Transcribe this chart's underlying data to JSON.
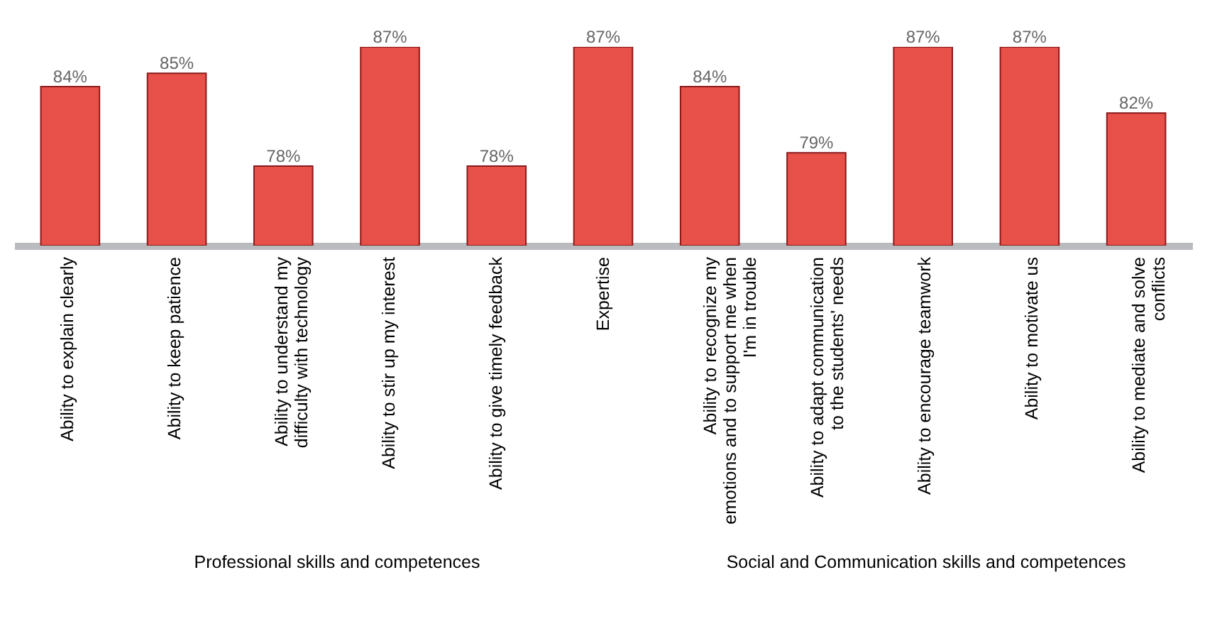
{
  "chart_data": {
    "type": "bar",
    "categories": [
      "Ability to explain clearly",
      "Ability to keep patience",
      "Ability to understand my difficulty with technology",
      "Ability to stir up my interest",
      "Ability to give timely feedback",
      "Expertise",
      "Ability to recognize my emotions and to support me when I'm in trouble",
      "Ability to adapt communication to the students' needs",
      "Ability to encourage teamwork",
      "Ability to motivate us",
      "Ability to mediate and solve conflicts"
    ],
    "values": [
      84,
      85,
      78,
      87,
      78,
      87,
      84,
      79,
      87,
      87,
      82
    ],
    "value_labels": [
      "84%",
      "85%",
      "78%",
      "87%",
      "78%",
      "87%",
      "84%",
      "79%",
      "87%",
      "87%",
      "82%"
    ],
    "color": "#e8504a",
    "ylim": [
      72,
      87
    ],
    "annotations": [
      "Professional skills and competences",
      "Social and Communication skills and competences"
    ]
  }
}
